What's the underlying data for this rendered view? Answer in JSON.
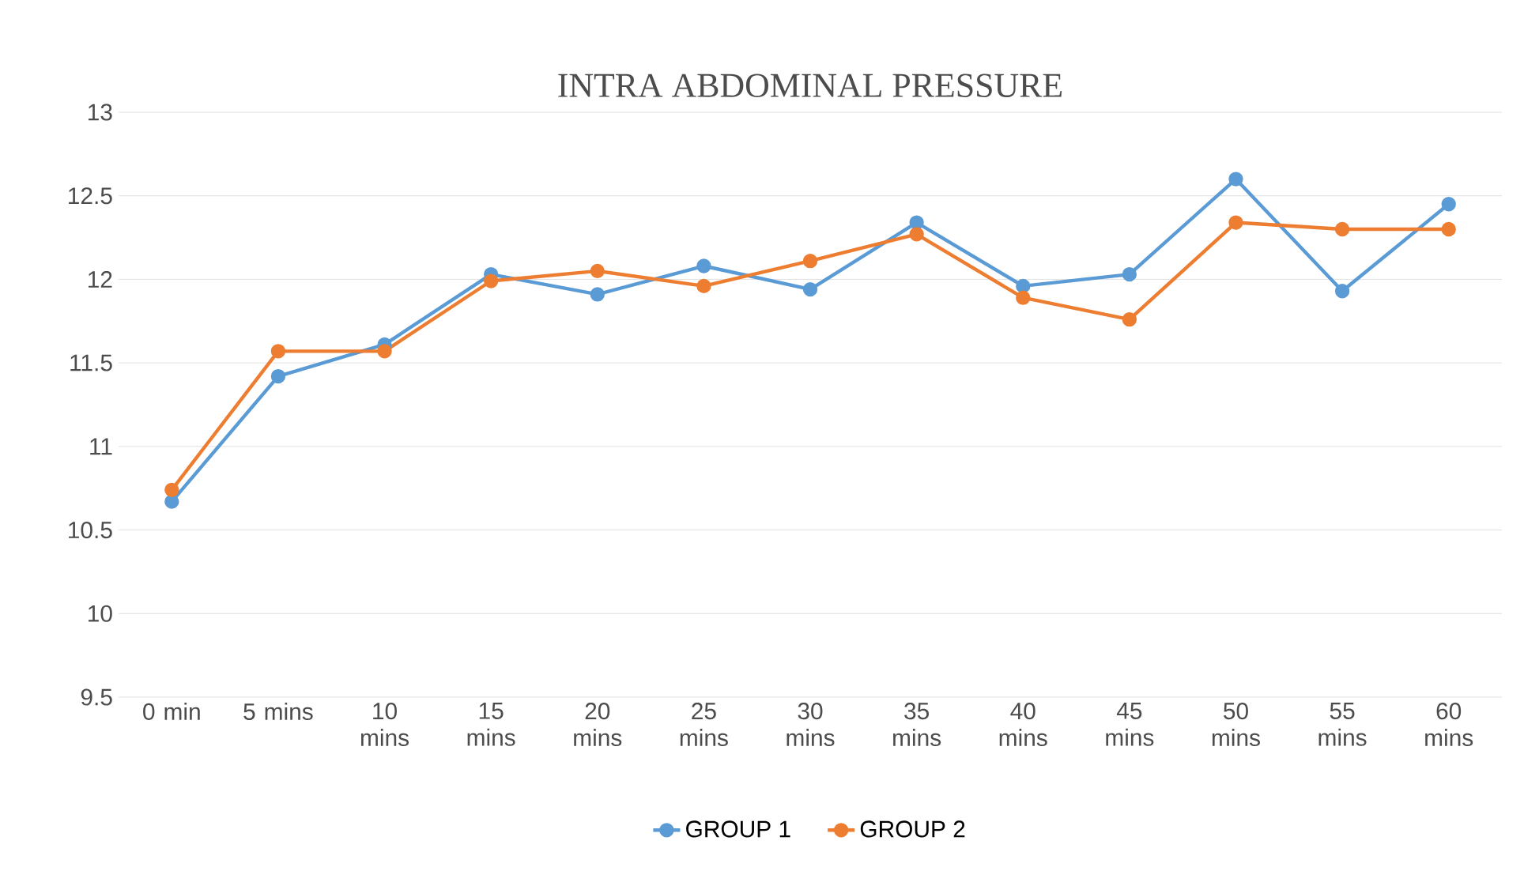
{
  "chart_data": {
    "type": "line",
    "title": "INTRA ABDOMINAL PRESSURE",
    "categories": [
      "0 min",
      "5 mins",
      "10 mins",
      "15 mins",
      "20 mins",
      "25 mins",
      "30 mins",
      "35 mins",
      "40 mins",
      "45 mins",
      "50 mins",
      "55 mins",
      "60 mins"
    ],
    "series": [
      {
        "name": "GROUP 1",
        "color": "#5b9bd5",
        "values": [
          10.67,
          11.42,
          11.61,
          12.03,
          11.91,
          12.08,
          11.94,
          12.34,
          11.96,
          12.03,
          12.6,
          11.93,
          12.45
        ]
      },
      {
        "name": "GROUP 2",
        "color": "#ed7d31",
        "values": [
          10.74,
          11.57,
          11.57,
          11.99,
          12.05,
          11.96,
          12.11,
          12.27,
          11.89,
          11.76,
          12.34,
          12.3,
          12.3
        ]
      }
    ],
    "ylim": [
      9.5,
      13
    ],
    "yticks": [
      9.5,
      10,
      10.5,
      11,
      11.5,
      12,
      12.5,
      13
    ],
    "grid": "y",
    "legend": "bottom",
    "marker": "circle",
    "line_style": "solid"
  }
}
